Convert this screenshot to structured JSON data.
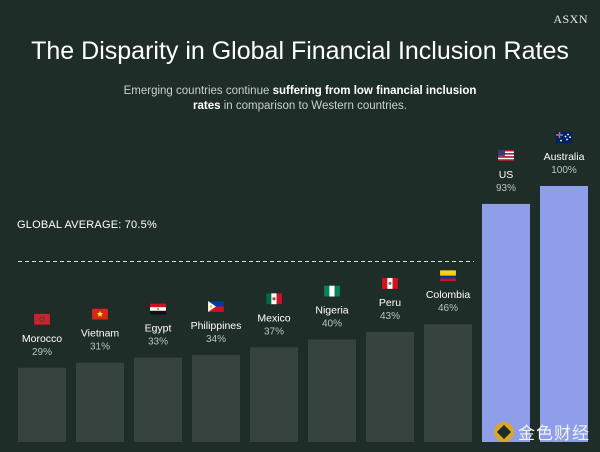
{
  "brand": "ASXN",
  "watermark_text": "金色财经",
  "chart_data": {
    "type": "bar",
    "title": "The Disparity in Global Financial Inclusion Rates",
    "subtitle_parts": [
      {
        "text": "Emerging countries continue ",
        "bold": false
      },
      {
        "text": "suffering from low financial inclusion",
        "bold": true
      },
      {
        "text": "\n",
        "bold": false
      },
      {
        "text": "rates",
        "bold": true
      },
      {
        "text": " in comparison to Western countries.",
        "bold": false
      }
    ],
    "categories": [
      "Morocco",
      "Vietnam",
      "Egypt",
      "Philippines",
      "Mexico",
      "Nigeria",
      "Peru",
      "Colombia",
      "US",
      "Australia"
    ],
    "values": [
      29,
      31,
      33,
      34,
      37,
      40,
      43,
      46,
      93,
      100
    ],
    "value_labels": [
      "29%",
      "31%",
      "33%",
      "34%",
      "37%",
      "40%",
      "43%",
      "46%",
      "93%",
      "100%"
    ],
    "flag_icons": [
      "morocco-flag-icon",
      "vietnam-flag-icon",
      "egypt-flag-icon",
      "philippines-flag-icon",
      "mexico-flag-icon",
      "nigeria-flag-icon",
      "peru-flag-icon",
      "colombia-flag-icon",
      "us-flag-icon",
      "australia-flag-icon"
    ],
    "highlight": [
      "US",
      "Australia"
    ],
    "average": {
      "value": 70.5,
      "label": "GLOBAL AVERAGE: 70.5%"
    },
    "ylim": [
      0,
      100
    ],
    "grid": false,
    "colors": {
      "bar": "#36433e",
      "highlight": "#8e9ee8",
      "average_line": "#ffffff",
      "background": "#1f2d28"
    }
  }
}
